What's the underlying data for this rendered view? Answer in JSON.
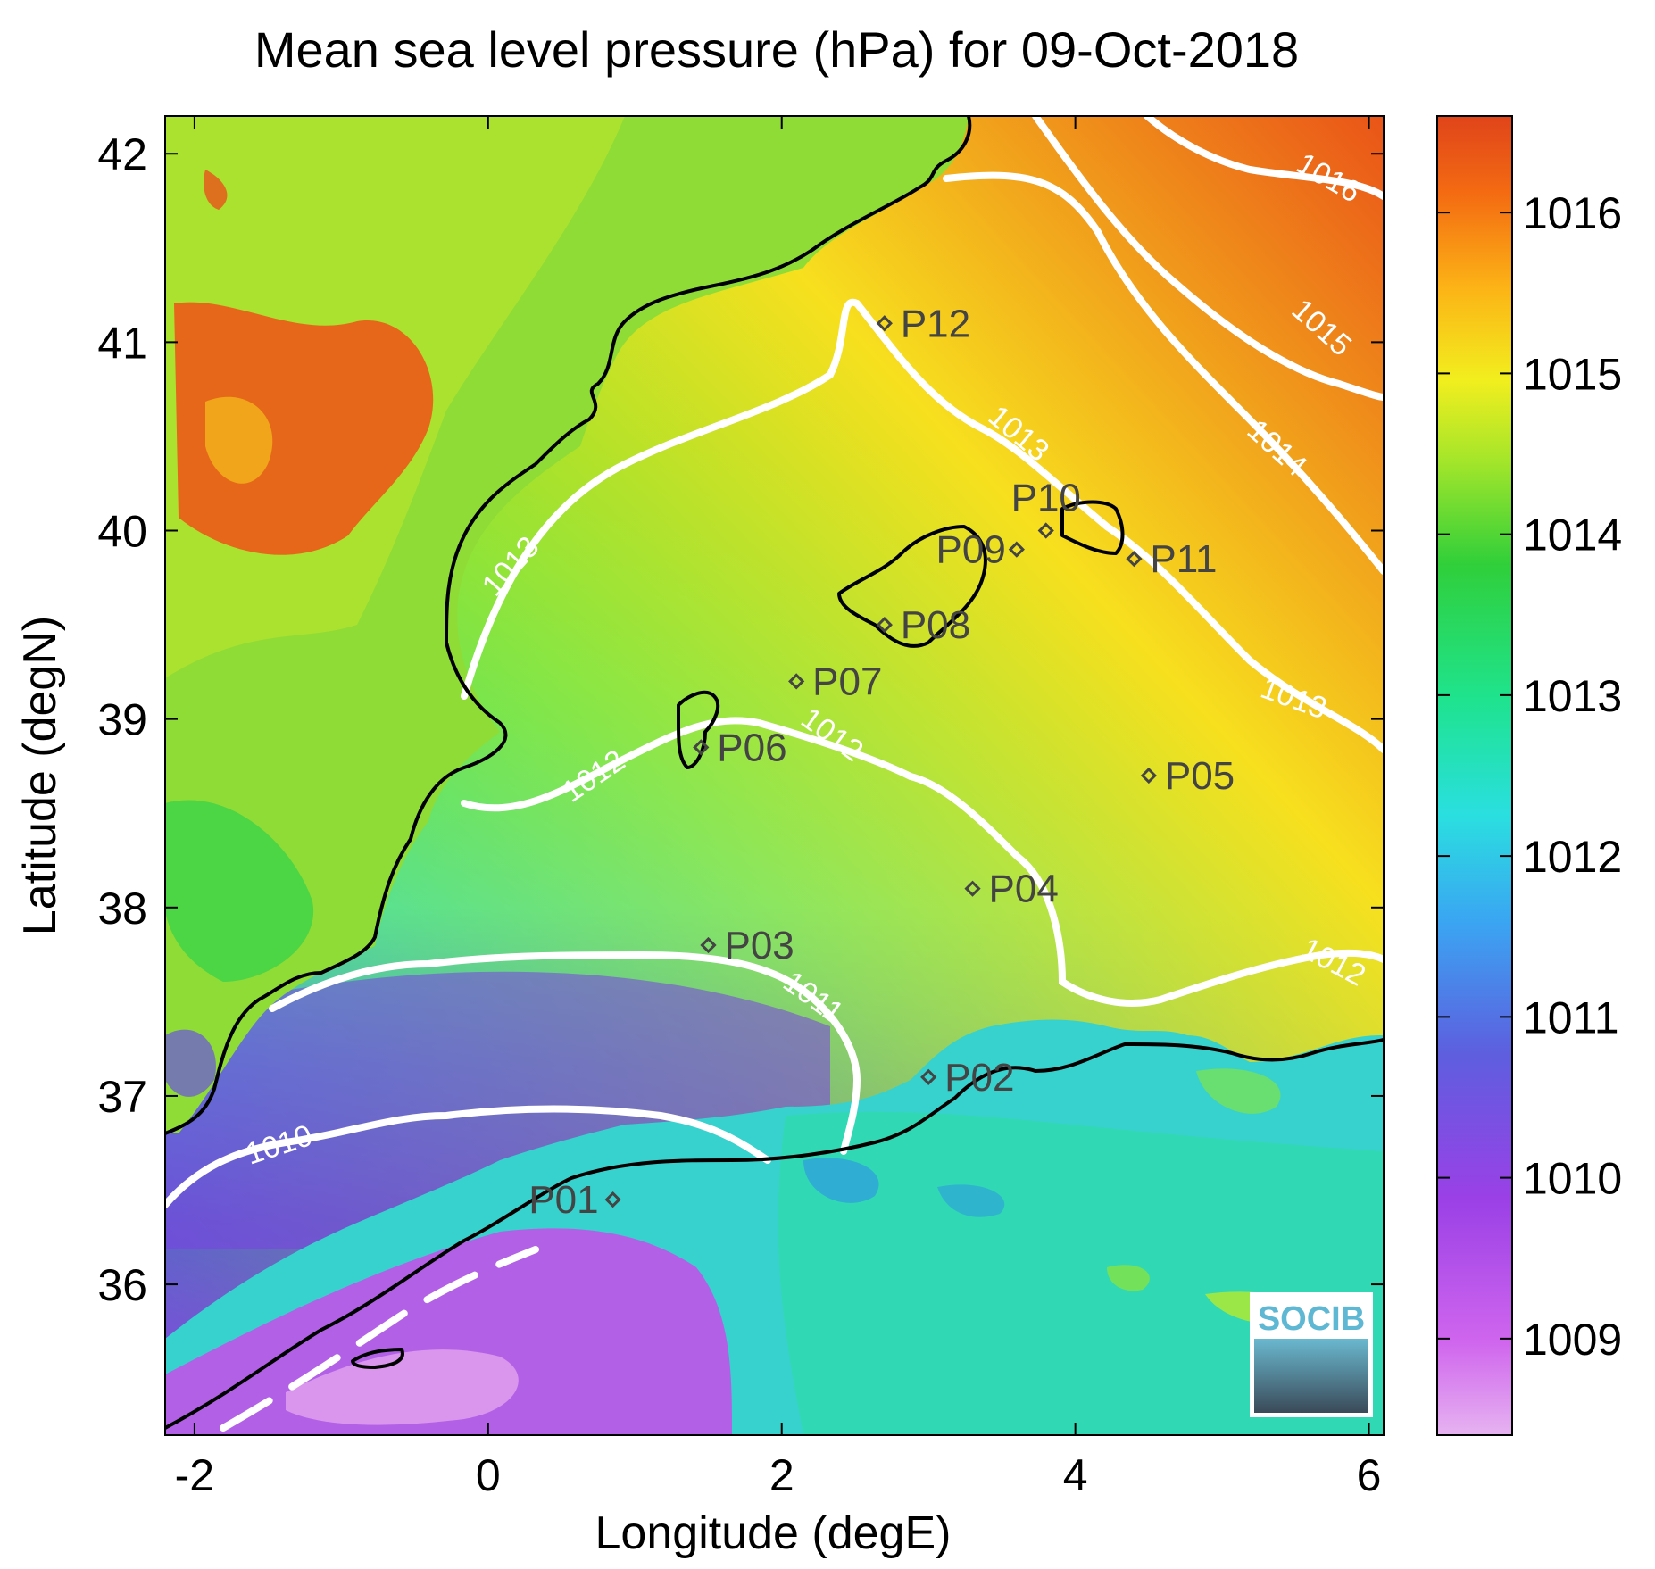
{
  "chart_data": {
    "type": "heatmap",
    "title": "Mean sea level pressure (hPa) for 09-Oct-2018",
    "xlabel": "Longitude (degE)",
    "ylabel": "Latitude (degN)",
    "xlim": [
      -2.2,
      6.1
    ],
    "ylim": [
      35.2,
      42.2
    ],
    "xticks": [
      -2,
      0,
      2,
      4,
      6
    ],
    "yticks": [
      36,
      37,
      38,
      39,
      40,
      41,
      42
    ],
    "colorbar": {
      "range": [
        1008.4,
        1016.6
      ],
      "ticks": [
        1009,
        1010,
        1011,
        1012,
        1013,
        1014,
        1015,
        1016
      ]
    },
    "stations": [
      {
        "name": "P01",
        "lon": 0.85,
        "lat": 36.45
      },
      {
        "name": "P02",
        "lon": 3.0,
        "lat": 37.1
      },
      {
        "name": "P03",
        "lon": 1.5,
        "lat": 37.8
      },
      {
        "name": "P04",
        "lon": 3.3,
        "lat": 38.1
      },
      {
        "name": "P05",
        "lon": 4.5,
        "lat": 38.7
      },
      {
        "name": "P06",
        "lon": 1.45,
        "lat": 38.85
      },
      {
        "name": "P07",
        "lon": 2.1,
        "lat": 39.2
      },
      {
        "name": "P08",
        "lon": 2.7,
        "lat": 39.5
      },
      {
        "name": "P09",
        "lon": 3.6,
        "lat": 39.9
      },
      {
        "name": "P10",
        "lon": 3.8,
        "lat": 40.0
      },
      {
        "name": "P11",
        "lon": 4.4,
        "lat": 39.85
      },
      {
        "name": "P12",
        "lon": 2.7,
        "lat": 41.1
      }
    ],
    "isobars": [
      {
        "value": 1010,
        "label": "1010"
      },
      {
        "value": 1011,
        "label": "1011"
      },
      {
        "value": 1012,
        "label": "1012"
      },
      {
        "value": 1013,
        "label": "1013"
      },
      {
        "value": 1014,
        "label": "1014"
      },
      {
        "value": 1015,
        "label": "1015"
      },
      {
        "value": 1016,
        "label": "1016"
      }
    ],
    "grid": false
  },
  "logo_text": "SOCIB"
}
